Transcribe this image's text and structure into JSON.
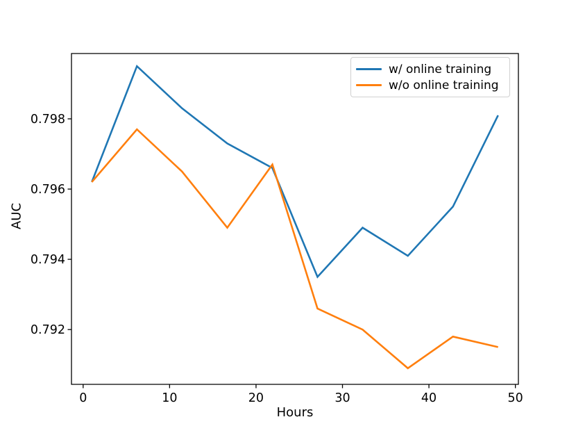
{
  "figure": {
    "background": "#ffffff",
    "text_color": "#000000",
    "spine_color": "#000000"
  },
  "chart_data": {
    "type": "line",
    "title": "",
    "xlabel": "Hours",
    "ylabel": "AUC",
    "x": [
      1,
      6.22,
      11.44,
      16.67,
      21.89,
      27.11,
      32.33,
      37.56,
      42.78,
      48
    ],
    "series": [
      {
        "name": "w/ online training",
        "color": "#1f77b4",
        "values": [
          0.7962,
          0.7995,
          0.7983,
          0.7973,
          0.7966,
          0.7935,
          0.7949,
          0.7941,
          0.7955,
          0.7981
        ]
      },
      {
        "name": "w/o online training",
        "color": "#ff7f0e",
        "values": [
          0.7962,
          0.7977,
          0.7965,
          0.7949,
          0.7967,
          0.7926,
          0.792,
          0.7909,
          0.7918,
          0.7915
        ]
      }
    ],
    "xlim": [
      -1.35,
      50.35
    ],
    "ylim": [
      0.79044,
      0.79986
    ],
    "xticks": {
      "values": [
        0,
        10,
        20,
        30,
        40,
        50
      ],
      "labels": [
        "0",
        "10",
        "20",
        "30",
        "40",
        "50"
      ]
    },
    "yticks": {
      "values": [
        0.792,
        0.794,
        0.796,
        0.798
      ],
      "labels": [
        "0.792",
        "0.794",
        "0.796",
        "0.798"
      ]
    },
    "grid": false,
    "legend_position": "upper right"
  },
  "legend": {
    "entries": [
      {
        "label": "w/ online training",
        "color": "#1f77b4"
      },
      {
        "label": "w/o online training",
        "color": "#ff7f0e"
      }
    ]
  }
}
